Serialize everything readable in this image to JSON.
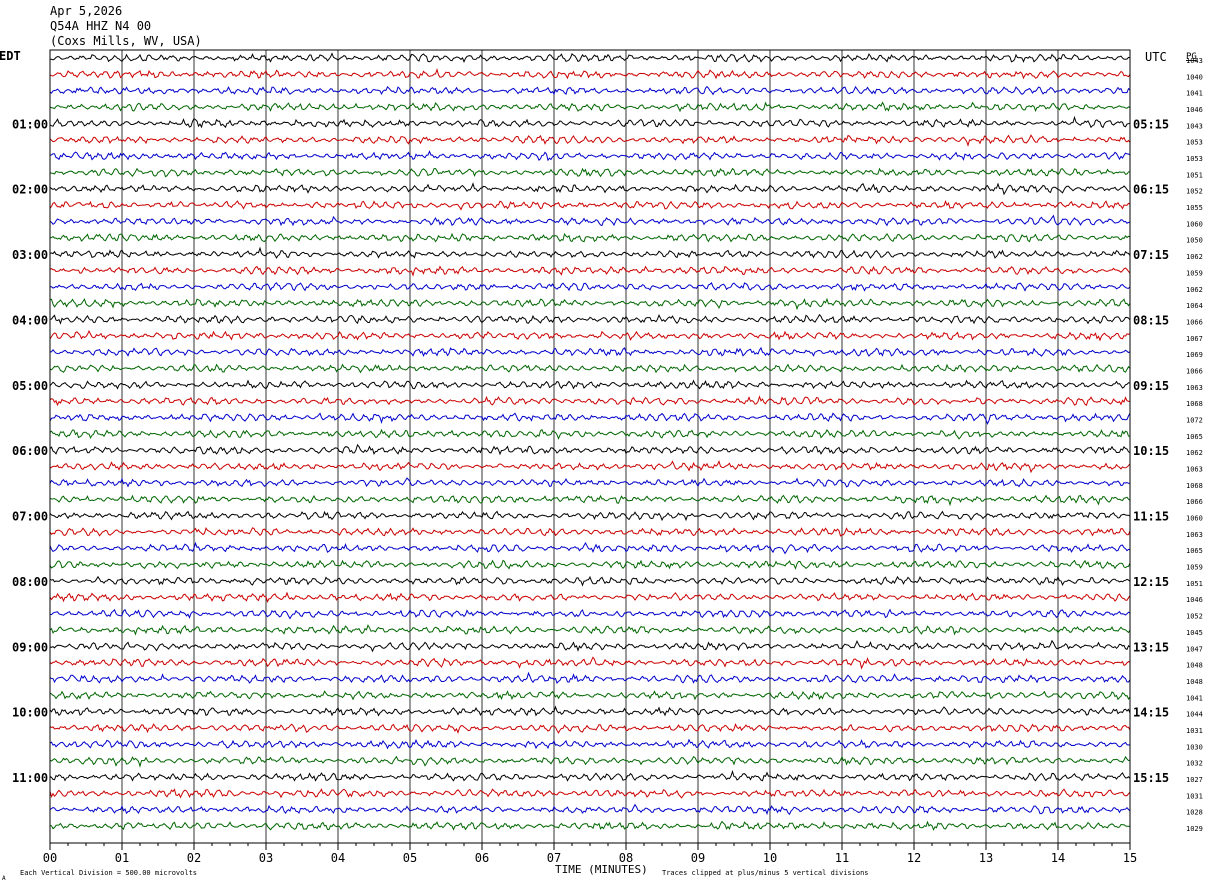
{
  "header": {
    "date": "Apr 5,2026",
    "station": "Q54A HHZ N4 00",
    "location": "(Coxs Mills, WV, USA)"
  },
  "labels": {
    "left_timezone": "EDT",
    "right_timezone": "UTC",
    "right_column_heading": "PG",
    "x_axis_title": "TIME (MINUTES)",
    "scale_note": "Each Vertical Division =  500.00 microvolts",
    "clip_note": "Traces clipped at plus/minus 5 vertical divisions",
    "corner_mark": "A"
  },
  "chart_data": {
    "type": "line",
    "title": "Apr 5,2026 Q54A HHZ N4 00 (Coxs Mills, WV, USA)",
    "xlabel": "TIME (MINUTES)",
    "xlim": [
      0,
      15
    ],
    "x_ticks": [
      "00",
      "01",
      "02",
      "03",
      "04",
      "05",
      "06",
      "07",
      "08",
      "09",
      "10",
      "11",
      "12",
      "13",
      "14",
      "15"
    ],
    "grid": "vertical lines each minute",
    "trace_colors": [
      "#000000",
      "#cc0000",
      "#0000cc",
      "#006600"
    ],
    "left_hour_labels": [
      "01:00",
      "02:00",
      "03:00",
      "04:00",
      "05:00",
      "06:00",
      "07:00",
      "08:00",
      "09:00",
      "10:00",
      "11:00"
    ],
    "right_hour_labels": [
      "05:15",
      "06:15",
      "07:15",
      "08:15",
      "09:15",
      "10:15",
      "11:15",
      "12:15",
      "13:15",
      "14:15",
      "15:15"
    ],
    "trace_values": [
      "1043",
      "1040",
      "1041",
      "1046",
      "1043",
      "1053",
      "1053",
      "1051",
      "1052",
      "1055",
      "1060",
      "1050",
      "1062",
      "1059",
      "1062",
      "1064",
      "1066",
      "1067",
      "1069",
      "1066",
      "1063",
      "1068",
      "1072",
      "1065",
      "1062",
      "1063",
      "1068",
      "1066",
      "1060",
      "1063",
      "1065",
      "1059",
      "1051",
      "1046",
      "1052",
      "1045",
      "1047",
      "1048",
      "1048",
      "1041",
      "1044",
      "1031",
      "1030",
      "1032",
      "1027",
      "1031",
      "1028",
      "1029"
    ]
  }
}
